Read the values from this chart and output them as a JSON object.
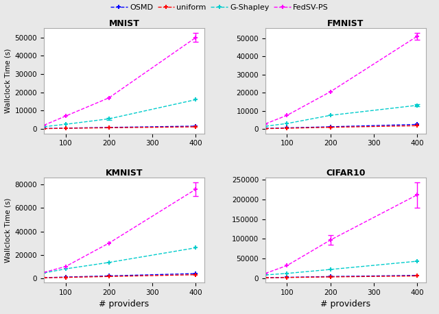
{
  "x": [
    50,
    100,
    200,
    400
  ],
  "datasets": {
    "MNIST": {
      "OSMD": {
        "y": [
          200,
          400,
          800,
          1500
        ],
        "yerr": [
          0,
          0,
          0,
          0
        ]
      },
      "uniform": {
        "y": [
          150,
          300,
          600,
          1100
        ],
        "yerr": [
          0,
          0,
          0,
          0
        ]
      },
      "G-Shapley": {
        "y": [
          1200,
          2500,
          5500,
          16000
        ],
        "yerr": [
          0,
          0,
          500,
          0
        ]
      },
      "FedSV-PS": {
        "y": [
          2000,
          7000,
          17000,
          50000
        ],
        "yerr": [
          0,
          0,
          0,
          2500
        ]
      }
    },
    "FMNIST": {
      "OSMD": {
        "y": [
          300,
          600,
          1200,
          2500
        ],
        "yerr": [
          0,
          0,
          0,
          0
        ]
      },
      "uniform": {
        "y": [
          200,
          400,
          900,
          1800
        ],
        "yerr": [
          0,
          0,
          0,
          0
        ]
      },
      "G-Shapley": {
        "y": [
          1500,
          3000,
          7500,
          13000
        ],
        "yerr": [
          0,
          0,
          0,
          700
        ]
      },
      "FedSV-PS": {
        "y": [
          2800,
          7500,
          20500,
          51000
        ],
        "yerr": [
          0,
          0,
          0,
          1800
        ]
      }
    },
    "KMNIST": {
      "OSMD": {
        "y": [
          500,
          1000,
          2000,
          4000
        ],
        "yerr": [
          0,
          0,
          0,
          0
        ]
      },
      "uniform": {
        "y": [
          350,
          700,
          1500,
          3000
        ],
        "yerr": [
          0,
          0,
          0,
          0
        ]
      },
      "G-Shapley": {
        "y": [
          4500,
          8000,
          13500,
          26000
        ],
        "yerr": [
          0,
          0,
          0,
          0
        ]
      },
      "FedSV-PS": {
        "y": [
          5000,
          10000,
          30000,
          76000
        ],
        "yerr": [
          0,
          0,
          0,
          6000
        ]
      }
    },
    "CIFAR10": {
      "OSMD": {
        "y": [
          1000,
          2000,
          4000,
          7000
        ],
        "yerr": [
          0,
          0,
          0,
          0
        ]
      },
      "uniform": {
        "y": [
          700,
          1500,
          3000,
          5500
        ],
        "yerr": [
          0,
          0,
          0,
          0
        ]
      },
      "G-Shapley": {
        "y": [
          8000,
          12000,
          22000,
          43000
        ],
        "yerr": [
          0,
          0,
          0,
          0
        ]
      },
      "FedSV-PS": {
        "y": [
          12000,
          32000,
          97000,
          212000
        ],
        "yerr": [
          0,
          0,
          12000,
          32000
        ]
      }
    }
  },
  "methods": [
    "OSMD",
    "uniform",
    "G-Shapley",
    "FedSV-PS"
  ],
  "colors": {
    "OSMD": "#0000ff",
    "uniform": "#ff0000",
    "G-Shapley": "#00cccc",
    "FedSV-PS": "#ff00ff"
  },
  "subplot_order": [
    [
      "MNIST",
      "FMNIST"
    ],
    [
      "KMNIST",
      "CIFAR10"
    ]
  ],
  "ylabel": "Wallclock Time (s)",
  "xlabel": "# providers",
  "fig_facecolor": "#e8e8e8"
}
